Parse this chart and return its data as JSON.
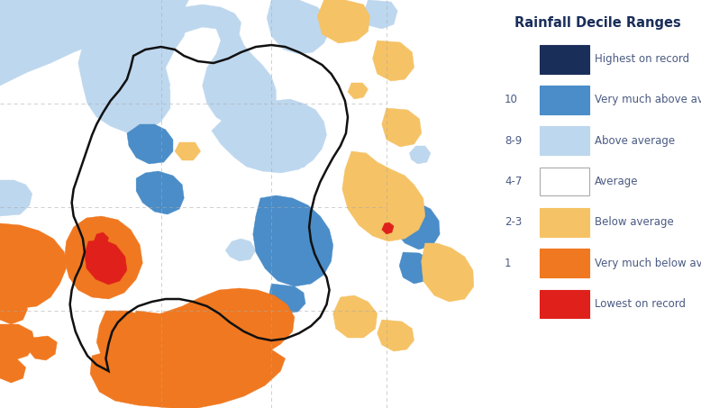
{
  "title": "Rainfall Decile Ranges",
  "title_color": "#1a2e5a",
  "title_fontsize": 10.5,
  "background_color": "#ffffff",
  "legend_items": [
    {
      "label": "Highest on record",
      "color": "#1a2e5a",
      "decile": "",
      "edgecolor": "#1a2e5a"
    },
    {
      "label": "Very much above average",
      "color": "#4a8dc8",
      "decile": "10",
      "edgecolor": "#4a8dc8"
    },
    {
      "label": "Above average",
      "color": "#bdd7ee",
      "decile": "8-9",
      "edgecolor": "#bdd7ee"
    },
    {
      "label": "Average",
      "color": "#ffffff",
      "decile": "4-7",
      "edgecolor": "#aaaaaa"
    },
    {
      "label": "Below average",
      "color": "#f5c265",
      "decile": "2-3",
      "edgecolor": "#f5c265"
    },
    {
      "label": "Very much below average",
      "color": "#f07820",
      "decile": "1",
      "edgecolor": "#f07820"
    },
    {
      "label": "Lowest on record",
      "color": "#e0201a",
      "decile": "",
      "edgecolor": "#e0201a"
    }
  ],
  "label_color": "#4a5a82",
  "label_fontsize": 8.5,
  "decile_fontsize": 8.5,
  "fig_width": 7.78,
  "fig_height": 4.53,
  "dpi": 100,
  "map_colors": {
    "highest": "#1a2e5a",
    "very_above": "#4a8dc8",
    "above": "#bdd7ee",
    "average": "#ffffff",
    "below": "#f5c265",
    "very_below": "#f07820",
    "lowest": "#e0201a"
  },
  "grid_color": "#aaaaaa",
  "basin_border_color": "#111111"
}
